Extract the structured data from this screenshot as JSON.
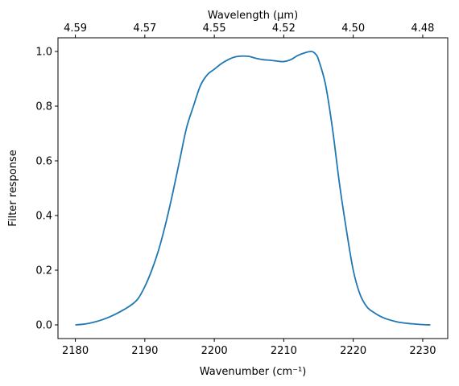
{
  "chart_data": {
    "type": "line",
    "title": "",
    "xlabel": "Wavenumber (cm⁻¹)",
    "ylabel": "Filter response",
    "top_xlabel": "Wavelength (μm)",
    "xlim": [
      2177.5,
      2233.6
    ],
    "ylim": [
      -0.05,
      1.05
    ],
    "x_ticks": [
      2180,
      2190,
      2200,
      2210,
      2220,
      2230
    ],
    "y_ticks": [
      0.0,
      0.2,
      0.4,
      0.6,
      0.8,
      1.0
    ],
    "top_ticks": [
      {
        "at": 2180,
        "label": "4.59"
      },
      {
        "at": 2190,
        "label": "4.57"
      },
      {
        "at": 2200,
        "label": "4.55"
      },
      {
        "at": 2210,
        "label": "4.52"
      },
      {
        "at": 2220,
        "label": "4.50"
      },
      {
        "at": 2230,
        "label": "4.48"
      }
    ],
    "grid": false,
    "color": "#1f77b4",
    "series": [
      {
        "x": [
          2180,
          2181,
          2182,
          2183,
          2184,
          2185,
          2186,
          2187,
          2188,
          2189,
          2190,
          2191,
          2192,
          2193,
          2194,
          2195,
          2196,
          2197,
          2198,
          2199,
          2200,
          2201,
          2202,
          2203,
          2204,
          2205,
          2206,
          2207,
          2208,
          2209,
          2210,
          2211,
          2212,
          2213,
          2214,
          2214.6,
          2215,
          2216,
          2217,
          2218,
          2219,
          2220,
          2221,
          2222,
          2223,
          2224,
          2225,
          2226,
          2227,
          2228,
          2229,
          2230,
          2231.1
        ],
        "y": [
          0.0,
          0.002,
          0.006,
          0.012,
          0.02,
          0.03,
          0.042,
          0.056,
          0.072,
          0.095,
          0.14,
          0.2,
          0.275,
          0.37,
          0.48,
          0.6,
          0.72,
          0.8,
          0.875,
          0.915,
          0.935,
          0.955,
          0.97,
          0.98,
          0.983,
          0.982,
          0.975,
          0.97,
          0.968,
          0.965,
          0.963,
          0.97,
          0.985,
          0.995,
          1.0,
          0.99,
          0.97,
          0.88,
          0.72,
          0.52,
          0.35,
          0.2,
          0.11,
          0.065,
          0.045,
          0.03,
          0.02,
          0.013,
          0.008,
          0.005,
          0.003,
          0.001,
          0.0
        ]
      }
    ]
  }
}
